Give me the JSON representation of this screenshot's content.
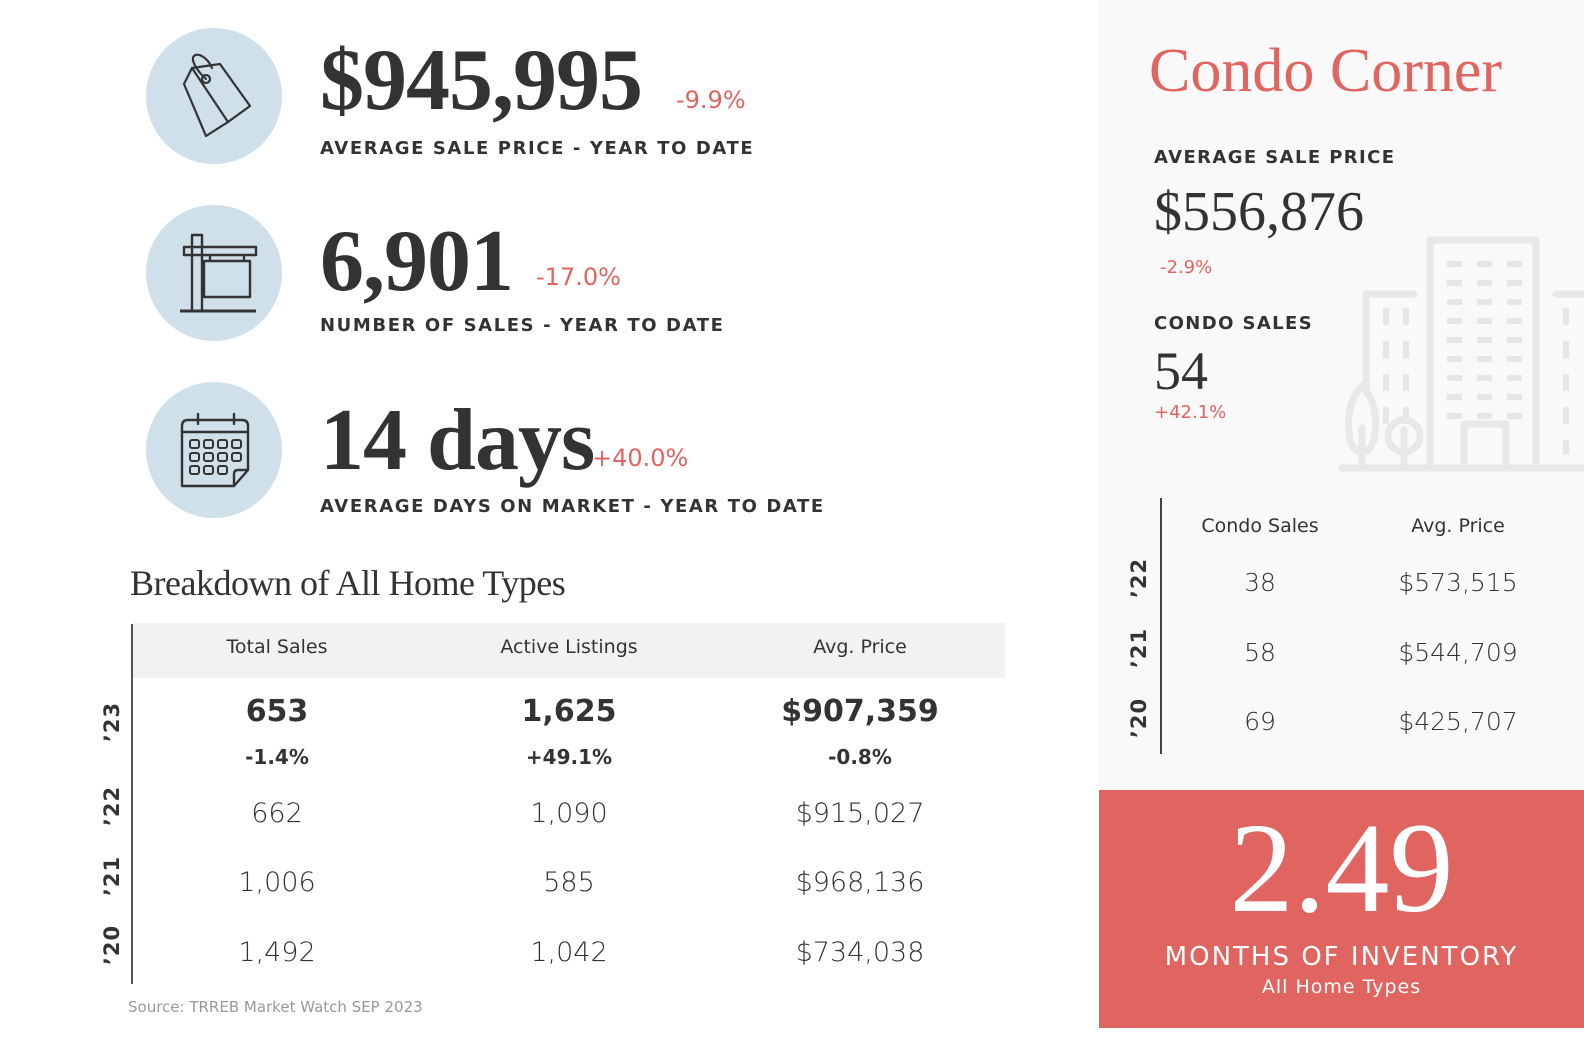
{
  "stats": {
    "avg_price": {
      "value": "$945,995",
      "change": "-9.9%",
      "label": "AVERAGE SALE PRICE - YEAR TO DATE",
      "icon": "price-tag-icon"
    },
    "num_sales": {
      "value": "6,901",
      "change": "-17.0%",
      "label": "NUMBER OF SALES - YEAR TO DATE",
      "icon": "for-sale-sign-icon"
    },
    "days_on_market": {
      "value": "14 days",
      "change": "+40.0%",
      "label": "AVERAGE DAYS ON MARKET - YEAR TO DATE",
      "icon": "calendar-icon"
    }
  },
  "breakdown": {
    "title": "Breakdown of All Home Types",
    "columns": [
      "Total Sales",
      "Active Listings",
      "Avg. Price"
    ],
    "current": {
      "year": "’23",
      "values": [
        "653",
        "1,625",
        "$907,359"
      ],
      "changes": [
        "-1.4%",
        "+49.1%",
        "-0.8%"
      ]
    },
    "rows": [
      {
        "year": "’22",
        "values": [
          "662",
          "1,090",
          "$915,027"
        ]
      },
      {
        "year": "’21",
        "values": [
          "1,006",
          "585",
          "$968,136"
        ]
      },
      {
        "year": "’20",
        "values": [
          "1,492",
          "1,042",
          "$734,038"
        ]
      }
    ],
    "source": "Source: TRREB Market Watch SEP 2023"
  },
  "condo_corner": {
    "title": "Condo Corner",
    "avg_price_label": "AVERAGE SALE PRICE",
    "avg_price_value": "$556,876",
    "avg_price_change": "-2.9%",
    "sales_label": "CONDO SALES",
    "sales_value": "54",
    "sales_change": "+42.1%",
    "illustration": "city-buildings-icon",
    "columns": [
      "Condo Sales",
      "Avg. Price"
    ],
    "rows": [
      {
        "year": "’22",
        "values": [
          "38",
          "$573,515"
        ]
      },
      {
        "year": "’21",
        "values": [
          "58",
          "$544,709"
        ]
      },
      {
        "year": "’20",
        "values": [
          "69",
          "$425,707"
        ]
      }
    ]
  },
  "inventory": {
    "value": "2.49",
    "label": "MONTHS OF INVENTORY",
    "sublabel": "All Home Types"
  },
  "colors": {
    "accent": "#e06460",
    "icon_circle": "#cfe0ea",
    "text": "#333333",
    "panel_bg": "#f9f9f9",
    "table_header_bg": "#f2f2f2"
  }
}
